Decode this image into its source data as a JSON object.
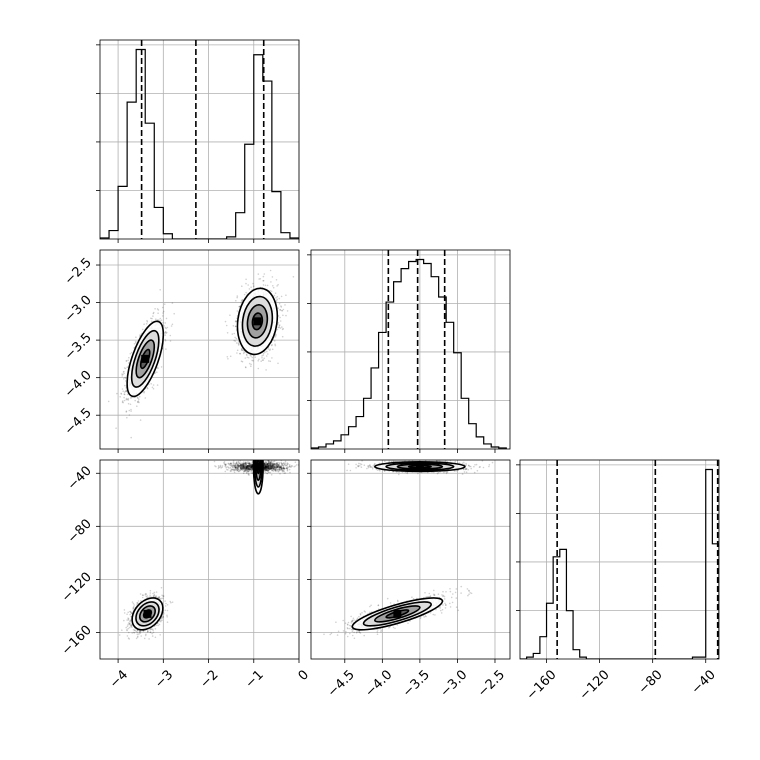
{
  "chart_data": {
    "type": "corner",
    "parameters": [
      "",
      "",
      ""
    ],
    "grid": true,
    "axes": {
      "p0": {
        "range": [
          -4.4,
          0
        ],
        "ticks": [
          -4,
          -3,
          -2,
          -1,
          0
        ],
        "tick_labels": [
          "−4",
          "−3",
          "−2",
          "−1",
          "0"
        ]
      },
      "p1": {
        "range": [
          -4.95,
          -2.3
        ],
        "ticks": [
          -4.5,
          -4.0,
          -3.5,
          -3.0,
          -2.5
        ],
        "tick_labels": [
          "−4.5",
          "−4.0",
          "−3.5",
          "−3.0",
          "−2.5"
        ]
      },
      "p2": {
        "range": [
          -180,
          -30
        ],
        "ticks": [
          -160,
          -120,
          -80,
          -40
        ],
        "tick_labels": [
          "−160",
          "−120",
          "−80",
          "−40"
        ]
      }
    },
    "quantile_lines": {
      "p0": [
        -3.48,
        -2.28,
        -0.78
      ],
      "p1": [
        -3.92,
        -3.53,
        -3.17
      ],
      "p2": [
        -152,
        -78,
        -31
      ]
    },
    "histograms": {
      "p0": {
        "bin_edges": [
          -4.4,
          -4.2,
          -4.0,
          -3.8,
          -3.6,
          -3.4,
          -3.2,
          -3.0,
          -2.8,
          -2.6,
          -2.4,
          -2.2,
          -2.0,
          -1.8,
          -1.6,
          -1.4,
          -1.2,
          -1.0,
          -0.8,
          -0.6,
          -0.4,
          -0.2,
          0.0
        ],
        "counts": [
          1,
          8,
          50,
          130,
          180,
          110,
          30,
          5,
          0,
          0,
          0,
          0,
          0,
          0,
          2,
          25,
          90,
          175,
          150,
          45,
          6,
          1
        ]
      },
      "p1": {
        "bin_edges": [
          -4.95,
          -4.85,
          -4.75,
          -4.65,
          -4.55,
          -4.45,
          -4.35,
          -4.25,
          -4.15,
          -4.05,
          -3.95,
          -3.85,
          -3.75,
          -3.65,
          -3.55,
          -3.45,
          -3.35,
          -3.25,
          -3.15,
          -3.05,
          -2.95,
          -2.85,
          -2.75,
          -2.65,
          -2.55,
          -2.45,
          -2.35
        ],
        "counts": [
          1,
          2,
          5,
          8,
          14,
          22,
          32,
          50,
          80,
          115,
          145,
          165,
          178,
          185,
          187,
          183,
          170,
          150,
          125,
          95,
          50,
          25,
          12,
          5,
          2,
          1
        ]
      },
      "p2": {
        "bin_edges": [
          -180,
          -175,
          -170,
          -165,
          -160,
          -155,
          -150,
          -145,
          -140,
          -135,
          -130,
          -125,
          -120,
          -115,
          -110,
          -105,
          -100,
          -95,
          -90,
          -85,
          -80,
          -75,
          -70,
          -65,
          -60,
          -55,
          -50,
          -45,
          -40,
          -35,
          -30
        ],
        "counts": [
          0,
          1,
          3,
          12,
          30,
          55,
          59,
          26,
          5,
          1,
          0,
          0,
          0,
          0,
          0,
          0,
          0,
          0,
          0,
          0,
          0,
          0,
          0,
          0,
          0,
          0,
          1,
          1,
          102,
          62
        ]
      }
    },
    "clusters_2d": [
      {
        "panel": "p0_vs_p1",
        "center": [
          -3.4,
          -3.75
        ],
        "sd": [
          0.2,
          0.25
        ],
        "rho": 0.65,
        "weight": 0.5
      },
      {
        "panel": "p0_vs_p1",
        "center": [
          -0.92,
          -3.25
        ],
        "sd": [
          0.22,
          0.22
        ],
        "rho": 0.15,
        "weight": 0.5
      },
      {
        "panel": "p0_vs_p2",
        "center": [
          -3.35,
          -146
        ],
        "sd": [
          0.17,
          6
        ],
        "rho": 0.35,
        "weight": 0.5
      },
      {
        "panel": "p0_vs_p2",
        "center": [
          -0.9,
          -35
        ],
        "sd": [
          0.3,
          1.8
        ],
        "rho": 0.0,
        "weight": 0.5
      },
      {
        "panel": "p1_vs_p2",
        "center": [
          -3.8,
          -146
        ],
        "sd": [
          0.3,
          6
        ],
        "rho": 0.8,
        "weight": 0.5
      },
      {
        "panel": "p1_vs_p2",
        "center": [
          -3.5,
          -35
        ],
        "sd": [
          0.3,
          1.8
        ],
        "rho": 0.0,
        "weight": 0.5
      }
    ],
    "contour_levels_sigma": [
      0.5,
      1.0,
      1.5,
      2.0
    ]
  }
}
